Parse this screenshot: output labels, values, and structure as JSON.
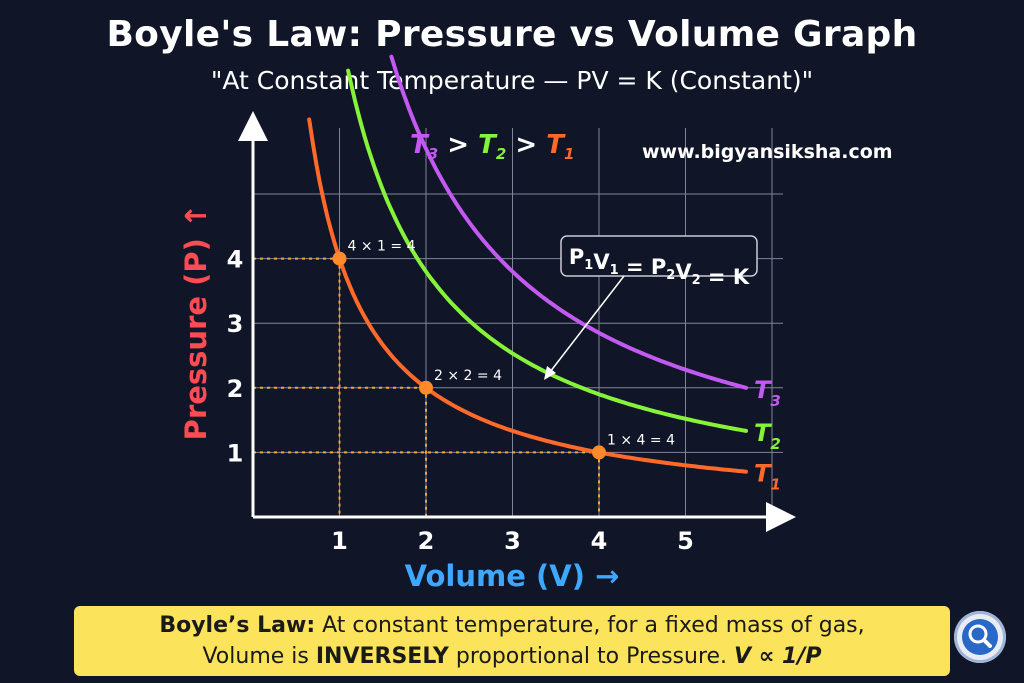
{
  "header": {
    "title": "Boyle's Law: Pressure vs Volume Graph",
    "subtitle": "\"At Constant Temperature — PV = K (Constant)\"",
    "website": "www.bigyansiksha.com"
  },
  "colors": {
    "background": "#101528",
    "t1": "#ff6a2b",
    "t2": "#86f23a",
    "t3": "#c259f0",
    "ylabel": "#ff4b52",
    "xlabel": "#3ea8ff",
    "banner": "#fbe45b"
  },
  "chart_data": {
    "type": "line",
    "title": "Boyle's Law: Pressure vs Volume Graph",
    "xlabel": "Volume (V) →",
    "ylabel": "Pressure (P) ↑",
    "xticks": [
      "1",
      "2",
      "3",
      "4",
      "5"
    ],
    "yticks": [
      "1",
      "2",
      "3",
      "4"
    ],
    "xlim": [
      0,
      5.8
    ],
    "ylim": [
      0,
      6.1
    ],
    "grid": true,
    "series": [
      {
        "name": "T1",
        "sub": "1",
        "k": 4,
        "x_start": 0.65,
        "x_end": 5.7,
        "color": "#ff6a2b"
      },
      {
        "name": "T2",
        "sub": "2",
        "k": 7.6,
        "x_start": 1.1,
        "x_end": 5.7,
        "color": "#86f23a"
      },
      {
        "name": "T3",
        "sub": "3",
        "k": 11.4,
        "x_start": 1.6,
        "x_end": 5.7,
        "color": "#c259f0"
      }
    ],
    "highlight_points": [
      {
        "x": 1,
        "y": 4,
        "label": "4 × 1 = 4"
      },
      {
        "x": 2,
        "y": 2,
        "label": "2 × 2 = 4"
      },
      {
        "x": 4,
        "y": 1,
        "label": "1 × 4 = 4"
      }
    ],
    "legend_order": {
      "text": ">",
      "items": [
        "T3",
        "T2",
        "T1"
      ]
    },
    "annotation": {
      "text": "P1V1 = P2V2 = K"
    }
  },
  "banner": {
    "prefix": "Boyle’s Law:",
    "line1": " At constant temperature, for a fixed mass of gas,",
    "line2_a": "Volume is ",
    "line2_b": "INVERSELY",
    "line2_c": " proportional to Pressure. ",
    "formula": "V ∝ 1/P"
  },
  "search_icon": "magnifier-icon"
}
